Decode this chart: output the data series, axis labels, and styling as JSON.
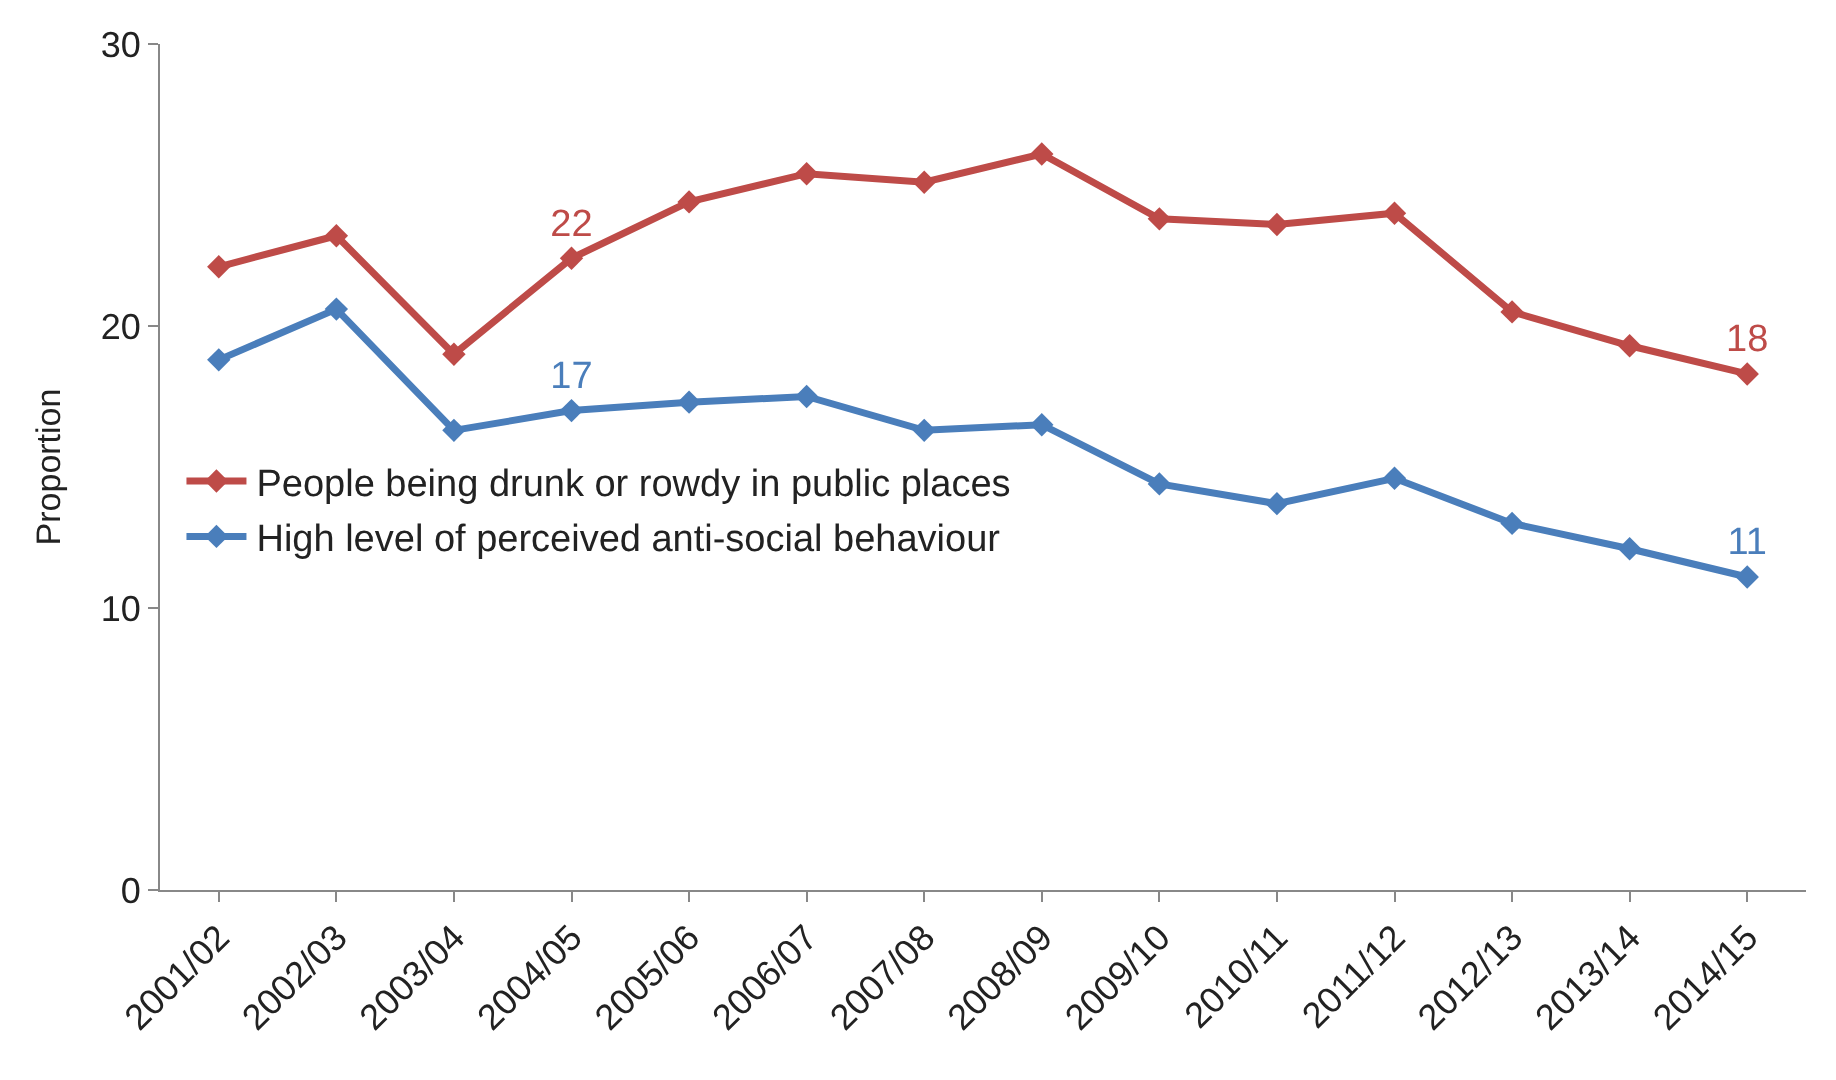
{
  "chart_data": {
    "type": "line",
    "ylabel": "Proportion",
    "categories": [
      "2001/02",
      "2002/03",
      "2003/04",
      "2004/05",
      "2005/06",
      "2006/07",
      "2007/08",
      "2008/09",
      "2009/10",
      "2010/11",
      "2011/12",
      "2012/13",
      "2013/14",
      "2014/15"
    ],
    "series": [
      {
        "name": "People being drunk or rowdy in public places",
        "color": "#be4b48",
        "values": [
          22.1,
          23.2,
          19.0,
          22.4,
          24.4,
          25.4,
          25.1,
          26.1,
          23.8,
          23.6,
          24.0,
          20.5,
          19.3,
          18.3
        ],
        "value_labels": [
          null,
          null,
          null,
          "22",
          null,
          null,
          null,
          null,
          null,
          null,
          null,
          null,
          null,
          "18"
        ]
      },
      {
        "name": "High level of perceived anti-social behaviour",
        "color": "#4a7ebb",
        "values": [
          18.8,
          20.6,
          16.3,
          17.0,
          17.3,
          17.5,
          16.3,
          16.5,
          14.4,
          13.7,
          14.6,
          13.0,
          12.1,
          11.1
        ],
        "value_labels": [
          null,
          null,
          null,
          "17",
          null,
          null,
          null,
          null,
          null,
          null,
          null,
          null,
          null,
          "11"
        ]
      }
    ],
    "ylim": [
      0,
      30
    ],
    "yticks": [
      0,
      10,
      20,
      30
    ],
    "grid": false,
    "legend": "left",
    "marker": "diamond",
    "line_style": "solid"
  }
}
